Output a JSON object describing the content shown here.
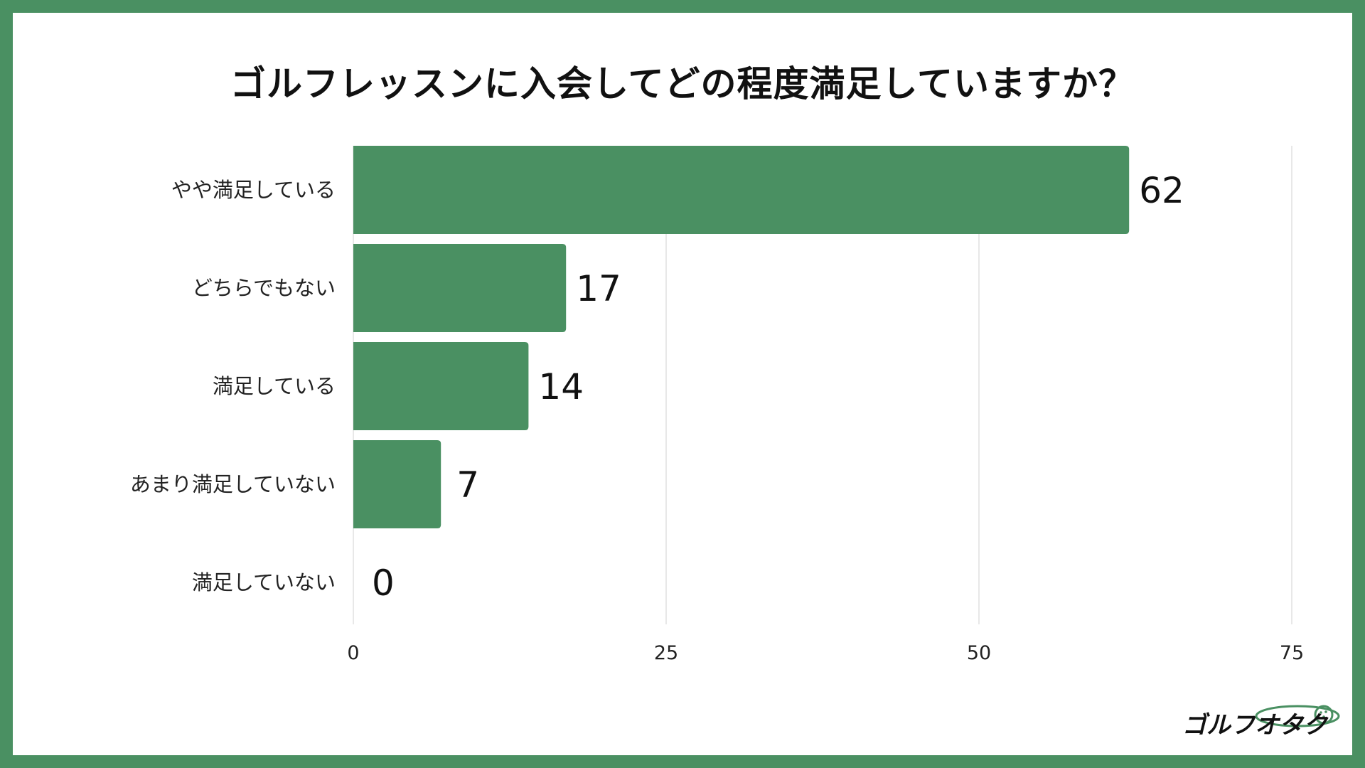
{
  "chart_data": {
    "type": "bar",
    "orientation": "horizontal",
    "title": "ゴルフレッスンに入会してどの程度満足していますか？",
    "categories": [
      "やや満足している",
      "どちらでもない",
      "満足している",
      "あまり満足していない",
      "満足していない"
    ],
    "values": [
      62,
      17,
      14,
      7,
      0
    ],
    "xlim": [
      0,
      75
    ],
    "xticks": [
      "0",
      "25",
      "50",
      "75"
    ],
    "grid": "vertical",
    "bar_color": "#4a9062",
    "frame_color": "#4a9062"
  },
  "brand": {
    "logo_text": "ゴルフオタク",
    "logo_icon": "golf-ball-icon"
  }
}
